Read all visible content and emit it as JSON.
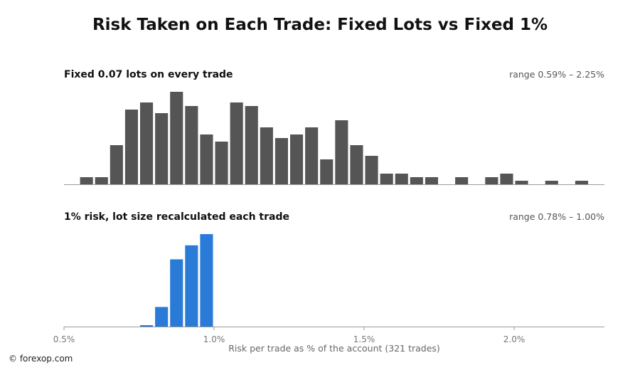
{
  "title": "Risk Taken on Each Trade: Fixed Lots vs Fixed 1%",
  "credit": "© forexop.com",
  "chart_data": {
    "type": "bar",
    "title": "Risk Taken on Each Trade: Fixed Lots vs Fixed 1%",
    "xlabel": "Risk per trade as % of the account (321 trades)",
    "ylabel": "",
    "xlim": [
      0.5,
      2.3
    ],
    "x_ticks": [
      0.5,
      1.0,
      1.5,
      2.0
    ],
    "x_tick_labels": [
      "0.5%",
      "1.0%",
      "1.5%",
      "2.0%"
    ],
    "grid": false,
    "bin_width": 0.05,
    "panels": [
      {
        "title": "Fixed 0.07 lots on every trade",
        "range_label": "range 0.59% – 2.25%",
        "color": "#555555",
        "bin_starts": [
          0.55,
          0.6,
          0.65,
          0.7,
          0.75,
          0.8,
          0.85,
          0.9,
          0.95,
          1.0,
          1.05,
          1.1,
          1.15,
          1.2,
          1.25,
          1.3,
          1.35,
          1.4,
          1.45,
          1.5,
          1.55,
          1.6,
          1.65,
          1.7,
          1.8,
          1.9,
          1.95,
          2.0,
          2.1,
          2.2
        ],
        "counts": [
          2,
          2,
          11,
          21,
          23,
          20,
          26,
          22,
          14,
          12,
          23,
          22,
          16,
          13,
          14,
          16,
          7,
          18,
          11,
          8,
          3,
          3,
          2,
          2,
          2,
          2,
          3,
          1,
          1,
          1
        ]
      },
      {
        "title": "1% risk, lot size recalculated each trade",
        "range_label": "range 0.78% – 1.00%",
        "color": "#2a7ad8",
        "bin_starts": [
          0.75,
          0.8,
          0.85,
          0.9,
          0.95
        ],
        "counts": [
          0.4,
          7,
          24,
          29,
          33
        ]
      }
    ]
  }
}
